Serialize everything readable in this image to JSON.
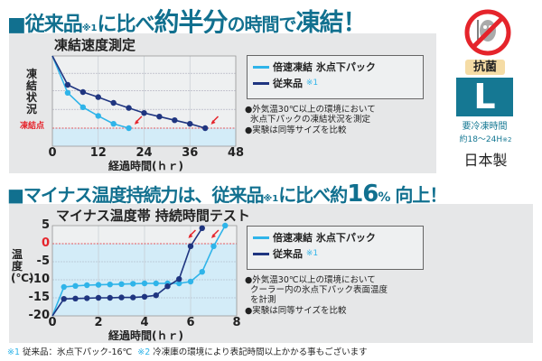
{
  "headline1": {
    "square": "■",
    "a": "従来品",
    "note": "※1",
    "b": "に比べ",
    "c": "約半分",
    "d": "の時間で",
    "e": "凍結！"
  },
  "headline2": {
    "a": "■マイナス温度持続力は、従来品",
    "note": "※1",
    "b": "に比べ約",
    "c": "16",
    "d": "%",
    "e": " 向上！"
  },
  "legend": {
    "fast": "倍速凍結  氷点下パック",
    "conventional": "従来品",
    "conventional_note": "※1"
  },
  "colors": {
    "fast": "#2fb4e9",
    "conventional": "#1f3580",
    "title": "#11708f",
    "freeze": "#e5242b",
    "fill": "#d3ecf8"
  },
  "chart_data": [
    {
      "type": "line",
      "title": "凍結速度測定",
      "xlabel": "経過時間(ｈｒ)",
      "ylabel": "凍結状況",
      "xlim": [
        0,
        48
      ],
      "xticks": [
        0,
        12,
        24,
        36,
        48
      ],
      "y_reference_label": "凍結点",
      "y_scale": "relative (no numeric ticks; 0 = freezing point)",
      "ylim": [
        -25,
        100
      ],
      "series": [
        {
          "name": "倍速凍結  氷点下パック",
          "x": [
            0,
            4,
            8,
            12,
            16,
            20
          ],
          "y": [
            100,
            49,
            29,
            17,
            6,
            0
          ]
        },
        {
          "name": "従来品",
          "x": [
            0,
            4,
            8,
            12,
            16,
            20,
            24,
            28,
            32,
            36,
            40
          ],
          "y": [
            100,
            60,
            50,
            43,
            35,
            28,
            21,
            16,
            11,
            6,
            0
          ]
        }
      ],
      "notes": [
        "●外気温30℃以上の環境において\n  氷点下パックの凍結状況を測定",
        "●実験は同等サイズを比較"
      ]
    },
    {
      "type": "line",
      "title": "マイナス温度帯  持続時間テスト",
      "xlabel": "経過時間(ｈｒ)",
      "ylabel": "温度(℃)",
      "xlim": [
        0,
        8
      ],
      "ylim": [
        -20,
        5
      ],
      "xticks": [
        0,
        2,
        4,
        6,
        8
      ],
      "yticks": [
        5,
        0,
        -5,
        -10,
        -15,
        -20
      ],
      "series": [
        {
          "name": "倍速凍結  氷点下パック",
          "x": [
            0,
            0.5,
            1,
            1.5,
            2,
            2.5,
            3,
            3.5,
            4,
            4.5,
            5,
            5.5,
            6,
            6.5,
            7,
            7.5
          ],
          "y": [
            -20,
            -12,
            -11.7,
            -11.5,
            -11.4,
            -11.3,
            -11.2,
            -11.1,
            -11,
            -11,
            -11,
            -11,
            -10.5,
            -7.8,
            -0.7,
            5
          ]
        },
        {
          "name": "従来品",
          "x": [
            0,
            0.5,
            1,
            1.5,
            2,
            2.5,
            3,
            3.5,
            4,
            4.5,
            5,
            5.5,
            6,
            6.5
          ],
          "y": [
            -20,
            -15.3,
            -15.2,
            -15.1,
            -15,
            -15,
            -14.9,
            -14.9,
            -14.7,
            -14.3,
            -11.8,
            -9.8,
            -0.7,
            4.3
          ]
        }
      ],
      "notes": [
        "●外気温30℃以上の環境において\n  クーラー内の氷点下パック表面温度\n  を計測",
        "●実験は同等サイズを比較"
      ]
    }
  ],
  "badge": {
    "antibacterial": "抗菌",
    "size": "L",
    "freeze_time_label": "要冷凍時間",
    "freeze_time": "約18〜24H",
    "freeze_note": "※2",
    "origin": "日本製",
    "icon": "no-germs-icon"
  },
  "footer": {
    "n1": "※1",
    "t1": " 従来品：氷点下パック-16℃  ",
    "n2": "※2",
    "t2": " 冷凍庫の環境により表記時間以上かかる事もございます"
  }
}
